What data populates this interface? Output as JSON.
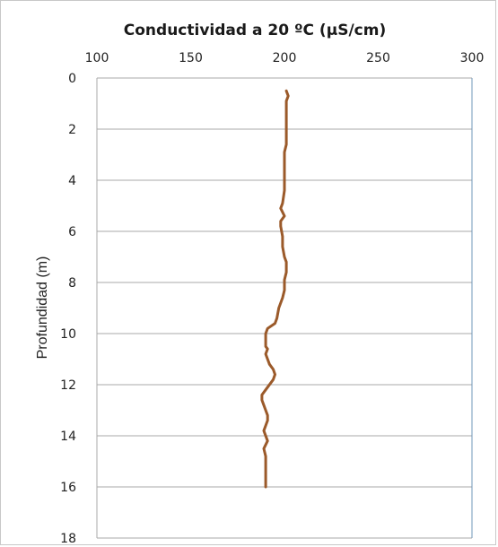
{
  "chart_data": {
    "type": "line",
    "title": "Conductividad  a  20 ºC (µS/cm)",
    "xlabel": "",
    "ylabel": "Profundidad (m)",
    "xlim": [
      100,
      300
    ],
    "ylim": [
      0,
      18
    ],
    "x_axis_position": "top",
    "y_axis_inverted": true,
    "x_ticks": [
      100,
      150,
      200,
      250,
      300
    ],
    "y_ticks": [
      0,
      2,
      4,
      6,
      8,
      10,
      12,
      14,
      16,
      18
    ],
    "grid": "horizontal",
    "legend": "none",
    "line_color": "#9b5a2a",
    "series": [
      {
        "x": [
          201,
          202,
          201,
          201,
          201,
          201,
          201,
          200,
          200,
          200,
          200,
          200,
          199,
          198,
          200,
          198,
          198,
          199,
          199,
          200,
          201,
          201,
          200,
          200,
          199,
          197,
          196,
          195,
          191,
          190,
          190,
          190,
          191,
          190,
          191,
          192,
          194,
          195,
          194,
          190,
          188,
          188,
          189,
          190,
          191,
          191,
          190,
          189,
          191,
          189,
          190,
          190,
          190
        ],
        "y": [
          0.5,
          0.7,
          0.9,
          1.2,
          1.6,
          2.0,
          2.6,
          2.9,
          3.2,
          3.6,
          4.0,
          4.4,
          4.9,
          5.1,
          5.4,
          5.6,
          5.8,
          6.2,
          6.6,
          7.0,
          7.2,
          7.6,
          7.9,
          8.3,
          8.6,
          9.0,
          9.4,
          9.6,
          9.8,
          10.0,
          10.2,
          10.5,
          10.6,
          10.8,
          11.0,
          11.2,
          11.4,
          11.6,
          11.8,
          12.2,
          12.4,
          12.6,
          12.8,
          13.0,
          13.2,
          13.4,
          13.6,
          13.8,
          14.2,
          14.5,
          14.8,
          15.2,
          16.0
        ]
      }
    ]
  }
}
